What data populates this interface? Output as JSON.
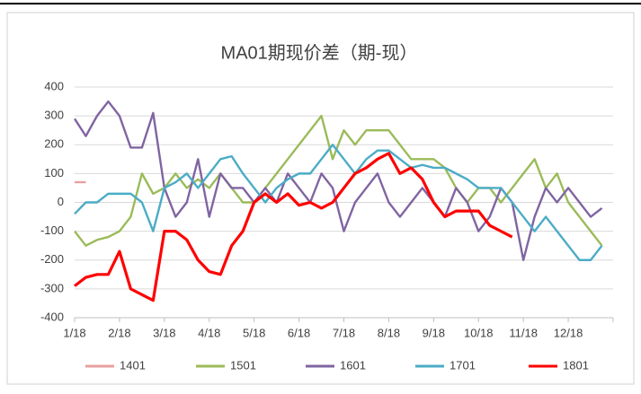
{
  "chart_data": {
    "type": "line",
    "title": "MA01期现价差（期-现）",
    "categories": [
      "1/18",
      null,
      null,
      null,
      "2/18",
      null,
      null,
      null,
      "3/18",
      null,
      null,
      null,
      "4/18",
      null,
      null,
      null,
      "5/18",
      null,
      null,
      null,
      "6/18",
      null,
      null,
      null,
      "7/18",
      null,
      null,
      null,
      "8/18",
      null,
      null,
      null,
      "9/18",
      null,
      null,
      null,
      "10/18",
      null,
      null,
      null,
      "11/18",
      null,
      null,
      null,
      "12/18",
      null,
      null,
      null
    ],
    "ylim": [
      -400,
      400
    ],
    "yticks": [
      -400,
      -300,
      -200,
      -100,
      0,
      100,
      200,
      300,
      400
    ],
    "grid": true,
    "legend": "bottom",
    "series": [
      {
        "name": "1401",
        "color": "#e8a0a0",
        "values": [
          70,
          70,
          null,
          null,
          null,
          null,
          null,
          null,
          null,
          null,
          null,
          null,
          null,
          null,
          null,
          null,
          null,
          null,
          null,
          null,
          null,
          null,
          null,
          null,
          null,
          null,
          null,
          null,
          null,
          null,
          null,
          null,
          null,
          null,
          null,
          null,
          null,
          null,
          null,
          null,
          null,
          null,
          null,
          null,
          null,
          null,
          null,
          null
        ]
      },
      {
        "name": "1501",
        "color": "#9bbb59",
        "values": [
          -100,
          -150,
          -130,
          -120,
          -100,
          -50,
          100,
          30,
          50,
          100,
          50,
          80,
          50,
          100,
          50,
          0,
          0,
          50,
          100,
          150,
          200,
          250,
          300,
          150,
          250,
          200,
          250,
          250,
          250,
          200,
          150,
          150,
          150,
          120,
          50,
          0,
          50,
          50,
          0,
          50,
          100,
          150,
          50,
          100,
          0,
          -50,
          -100,
          -150
        ]
      },
      {
        "name": "1601",
        "color": "#8064a2",
        "values": [
          290,
          230,
          300,
          350,
          300,
          190,
          190,
          310,
          50,
          -50,
          0,
          150,
          -50,
          100,
          50,
          50,
          0,
          50,
          0,
          100,
          50,
          0,
          100,
          50,
          -100,
          0,
          50,
          100,
          0,
          -50,
          0,
          50,
          0,
          -50,
          50,
          0,
          -100,
          -50,
          50,
          0,
          -200,
          -50,
          50,
          0,
          50,
          0,
          -50,
          -20
        ]
      },
      {
        "name": "1701",
        "color": "#4bacc6",
        "values": [
          -40,
          0,
          0,
          30,
          30,
          30,
          0,
          -100,
          50,
          70,
          100,
          50,
          100,
          150,
          160,
          100,
          50,
          0,
          50,
          80,
          100,
          100,
          150,
          200,
          150,
          100,
          150,
          180,
          180,
          150,
          120,
          130,
          120,
          120,
          100,
          80,
          50,
          50,
          50,
          0,
          -50,
          -100,
          -50,
          -100,
          -150,
          -200,
          -200,
          -150
        ]
      },
      {
        "name": "1801",
        "color": "#ff0000",
        "values": [
          -290,
          -260,
          -250,
          -250,
          -170,
          -300,
          -320,
          -340,
          -100,
          -100,
          -130,
          -200,
          -240,
          -250,
          -150,
          -100,
          0,
          30,
          0,
          30,
          -10,
          0,
          -20,
          0,
          50,
          100,
          120,
          150,
          170,
          100,
          120,
          80,
          0,
          -50,
          -30,
          -30,
          -30,
          -80,
          -100,
          -120,
          null,
          null,
          null,
          null,
          null,
          null,
          null,
          null
        ]
      }
    ]
  }
}
